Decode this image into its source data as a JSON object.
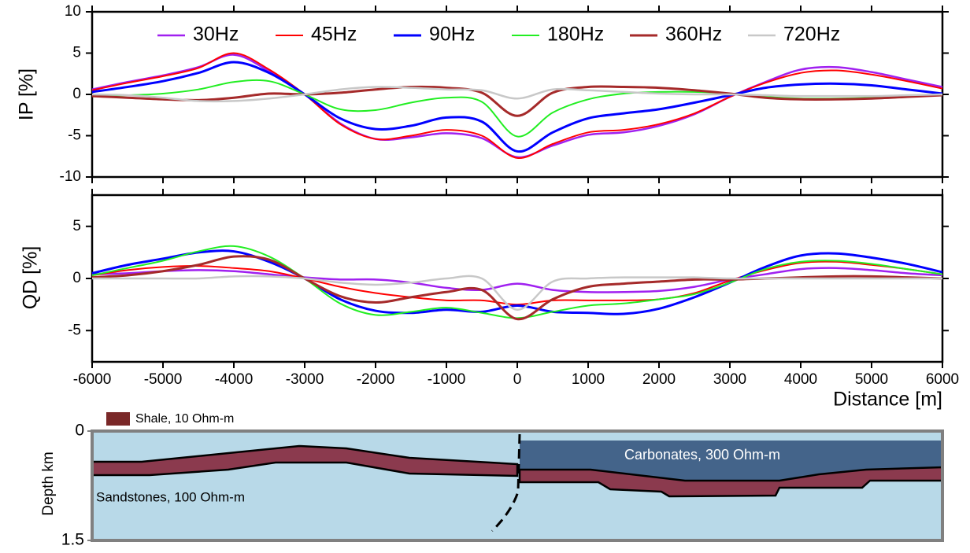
{
  "chart_data": [
    {
      "type": "line",
      "ylabel": "IP [%]",
      "legend": "top",
      "grid": false,
      "x": [
        -6000,
        -5500,
        -5000,
        -4500,
        -4000,
        -3500,
        -3000,
        -2500,
        -2000,
        -1500,
        -1000,
        -500,
        0,
        500,
        1000,
        1500,
        2000,
        2500,
        3000,
        3500,
        4000,
        4500,
        5000,
        5500,
        6000
      ],
      "xlim": [
        -6000,
        6000
      ],
      "xticks": [
        -6000,
        -5000,
        -4000,
        -3000,
        -2000,
        -1000,
        0,
        1000,
        2000,
        3000,
        4000,
        5000,
        6000
      ],
      "ylim": [
        -10,
        10
      ],
      "yticks": [
        -10,
        -5,
        0,
        5,
        10
      ],
      "series": [
        {
          "name": "30Hz",
          "color": "#a020f0",
          "values": [
            0.6,
            1.5,
            2.3,
            3.3,
            4.8,
            2.8,
            0,
            -3.5,
            -5.4,
            -5.2,
            -4.7,
            -5.3,
            -7.6,
            -6.2,
            -4.9,
            -4.6,
            -3.8,
            -2.4,
            -0.3,
            1.5,
            3.0,
            3.3,
            2.7,
            1.8,
            0.9
          ]
        },
        {
          "name": "45Hz",
          "color": "#ff0000",
          "values": [
            0.5,
            1.4,
            2.2,
            3.2,
            5.0,
            3.0,
            0,
            -3.6,
            -5.4,
            -5.0,
            -4.3,
            -5.0,
            -7.7,
            -6.0,
            -4.6,
            -4.3,
            -3.6,
            -2.3,
            -0.3,
            1.4,
            2.6,
            2.9,
            2.4,
            1.6,
            0.7
          ]
        },
        {
          "name": "90Hz",
          "color": "#0000ff",
          "values": [
            0.3,
            0.9,
            1.6,
            2.6,
            3.9,
            2.6,
            0,
            -2.9,
            -4.2,
            -3.8,
            -2.8,
            -3.3,
            -6.9,
            -4.6,
            -2.9,
            -2.3,
            -1.8,
            -1.0,
            -0.1,
            0.8,
            1.2,
            1.3,
            1.1,
            0.6,
            0.1
          ]
        },
        {
          "name": "180Hz",
          "color": "#22ee22",
          "values": [
            -0.2,
            -0.1,
            0.1,
            0.6,
            1.5,
            1.6,
            0,
            -1.8,
            -1.9,
            -1.0,
            -0.4,
            -0.9,
            -5.1,
            -2.2,
            -0.6,
            0.1,
            0.3,
            0.3,
            0.1,
            -0.3,
            -0.5,
            -0.5,
            -0.4,
            -0.2,
            -0.1
          ]
        },
        {
          "name": "360Hz",
          "color": "#a52a2a",
          "values": [
            -0.2,
            -0.4,
            -0.6,
            -0.7,
            -0.4,
            0.1,
            0,
            0.2,
            0.6,
            0.9,
            0.8,
            0.2,
            -2.6,
            0.2,
            0.9,
            0.9,
            0.8,
            0.5,
            0.1,
            -0.4,
            -0.6,
            -0.6,
            -0.5,
            -0.3,
            -0.1
          ]
        },
        {
          "name": "720Hz",
          "color": "#c8c8c8",
          "values": [
            0,
            -0.1,
            -0.4,
            -0.8,
            -0.8,
            -0.5,
            0,
            0.6,
            0.9,
            0.8,
            0.6,
            0.5,
            -0.5,
            0.6,
            0.5,
            0.3,
            0.1,
            0,
            0,
            -0.1,
            -0.2,
            -0.2,
            -0.2,
            -0.1,
            0
          ]
        }
      ]
    },
    {
      "type": "line",
      "ylabel": "QD [%]",
      "xlabel": "Distance [m]",
      "x": [
        -6000,
        -5500,
        -5000,
        -4500,
        -4000,
        -3500,
        -3000,
        -2500,
        -2000,
        -1500,
        -1000,
        -500,
        0,
        500,
        1000,
        1500,
        2000,
        2500,
        3000,
        3500,
        4000,
        4500,
        5000,
        5500,
        6000
      ],
      "xlim": [
        -6000,
        6000
      ],
      "xticks": [
        -6000,
        -5000,
        -4000,
        -3000,
        -2000,
        -1000,
        0,
        1000,
        2000,
        3000,
        4000,
        5000,
        6000
      ],
      "ylim": [
        -8,
        8
      ],
      "yticks": [
        -5,
        0,
        5
      ],
      "series": [
        {
          "color": "#a020f0",
          "values": [
            0.4,
            0.5,
            0.7,
            0.8,
            0.7,
            0.4,
            0.1,
            -0.1,
            -0.1,
            -0.4,
            -0.9,
            -1.1,
            -0.5,
            -1.1,
            -1.3,
            -1.3,
            -1.2,
            -0.8,
            -0.1,
            0.4,
            0.9,
            1.0,
            0.8,
            0.5,
            0.3
          ]
        },
        {
          "color": "#ff0000",
          "values": [
            0.3,
            0.8,
            1.1,
            1.2,
            1.0,
            0.7,
            0,
            -0.8,
            -1.4,
            -1.8,
            -2.1,
            -2.1,
            -2.5,
            -2.1,
            -2.1,
            -2.1,
            -2.0,
            -1.4,
            -0.2,
            0.8,
            1.5,
            1.6,
            1.3,
            0.9,
            0.4
          ]
        },
        {
          "color": "#0000ff",
          "values": [
            0.5,
            1.3,
            1.9,
            2.5,
            2.6,
            1.6,
            0,
            -2.0,
            -3.1,
            -3.3,
            -3.0,
            -3.2,
            -2.6,
            -3.2,
            -3.3,
            -3.4,
            -2.9,
            -1.8,
            -0.4,
            1.1,
            2.2,
            2.4,
            2.0,
            1.4,
            0.6
          ]
        },
        {
          "color": "#22ee22",
          "values": [
            0.3,
            1.0,
            1.7,
            2.6,
            3.1,
            2.1,
            0,
            -2.4,
            -3.5,
            -3.2,
            -2.8,
            -3.3,
            -3.8,
            -3.2,
            -2.6,
            -2.4,
            -2.0,
            -1.5,
            -0.4,
            0.9,
            1.6,
            1.7,
            1.4,
            0.9,
            0.4
          ]
        },
        {
          "color": "#a52a2a",
          "values": [
            0.1,
            0.3,
            0.7,
            1.3,
            2.1,
            1.8,
            0,
            -1.7,
            -2.3,
            -1.8,
            -1.3,
            -1.1,
            -3.9,
            -2.0,
            -0.8,
            -0.5,
            -0.3,
            -0.1,
            -0.1,
            0,
            0.1,
            0.2,
            0.2,
            0.1,
            0
          ]
        },
        {
          "color": "#c8c8c8",
          "values": [
            0,
            0,
            0,
            0,
            0.2,
            0.2,
            0,
            -0.4,
            -0.6,
            -0.4,
            0,
            0,
            -3.0,
            -0.3,
            0,
            0.1,
            0.1,
            0.1,
            0,
            0,
            0,
            0,
            0,
            0,
            0
          ]
        }
      ]
    },
    {
      "type": "section",
      "ylabel": "Depth km",
      "ylim": [
        0,
        1.5
      ],
      "yticks": [
        0,
        1.5
      ],
      "legend": "Shale, 10 Ohm-m",
      "labels": [
        "Carbonates, 300 Ohm-m",
        "Sandstones, 100 Ohm-m"
      ]
    }
  ]
}
